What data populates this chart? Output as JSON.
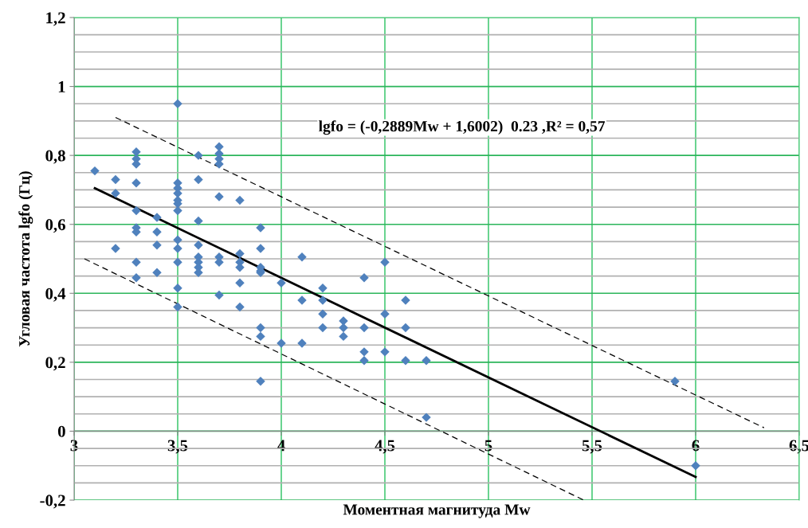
{
  "chart_data": {
    "type": "scatter",
    "xlabel": "Моментная магнитуда Mw",
    "ylabel": "Угловая частота lgfo (Гц)",
    "annotations": [
      "lgfo = (-0,2889Mw + 1,6002)  0.23 ,R² = 0,57"
    ],
    "series": [
      {
        "color": "#4f81bd",
        "marker": "diamond",
        "x": [
          3.1,
          3.2,
          3.2,
          3.2,
          3.3,
          3.3,
          3.3,
          3.3,
          3.3,
          3.3,
          3.3,
          3.3,
          3.3,
          3.4,
          3.4,
          3.4,
          3.4,
          3.5,
          3.5,
          3.5,
          3.5,
          3.5,
          3.5,
          3.5,
          3.5,
          3.5,
          3.5,
          3.5,
          3.5,
          3.6,
          3.6,
          3.6,
          3.6,
          3.6,
          3.6,
          3.6,
          3.6,
          3.7,
          3.7,
          3.7,
          3.7,
          3.7,
          3.7,
          3.7,
          3.7,
          3.8,
          3.8,
          3.8,
          3.8,
          3.8,
          3.8,
          3.9,
          3.9,
          3.9,
          3.9,
          3.9,
          3.9,
          3.9,
          3.9,
          4.0,
          4.0,
          4.1,
          4.1,
          4.1,
          4.2,
          4.2,
          4.2,
          4.2,
          4.3,
          4.3,
          4.3,
          4.4,
          4.4,
          4.4,
          4.4,
          4.5,
          4.5,
          4.5,
          4.6,
          4.6,
          4.6,
          4.7,
          4.7,
          5.9,
          6.0
        ],
        "values": [
          0.755,
          0.73,
          0.69,
          0.53,
          0.81,
          0.79,
          0.775,
          0.72,
          0.64,
          0.59,
          0.578,
          0.49,
          0.445,
          0.62,
          0.578,
          0.54,
          0.46,
          0.95,
          0.72,
          0.705,
          0.69,
          0.67,
          0.66,
          0.64,
          0.555,
          0.53,
          0.49,
          0.415,
          0.36,
          0.8,
          0.73,
          0.61,
          0.54,
          0.505,
          0.49,
          0.475,
          0.46,
          0.825,
          0.805,
          0.79,
          0.775,
          0.68,
          0.505,
          0.49,
          0.395,
          0.67,
          0.515,
          0.49,
          0.475,
          0.43,
          0.36,
          0.59,
          0.53,
          0.475,
          0.465,
          0.46,
          0.3,
          0.275,
          0.145,
          0.43,
          0.255,
          0.505,
          0.38,
          0.255,
          0.415,
          0.38,
          0.34,
          0.3,
          0.32,
          0.3,
          0.275,
          0.445,
          0.3,
          0.23,
          0.205,
          0.49,
          0.34,
          0.23,
          0.38,
          0.3,
          0.205,
          0.205,
          0.04,
          0.145,
          -0.1
        ]
      },
      {
        "type": "line",
        "color": "#000000",
        "line_style": "solid",
        "x": [
          3.1,
          6.0
        ],
        "values": [
          0.705,
          -0.133
        ]
      },
      {
        "type": "line",
        "color": "#000000",
        "line_style": "dashed",
        "x": [
          3.2,
          6.33
        ],
        "values": [
          0.91,
          0.01
        ]
      },
      {
        "type": "line",
        "color": "#000000",
        "line_style": "dashed",
        "x": [
          3.05,
          5.46
        ],
        "values": [
          0.5,
          -0.2
        ]
      }
    ],
    "xlim": [
      3,
      6.5
    ],
    "xticks": [
      3,
      {
        "value": 3.5,
        "label": "3,5"
      },
      4,
      {
        "value": 4.5,
        "label": "4,5"
      },
      5,
      {
        "value": 5.5,
        "label": "5,5"
      },
      6,
      {
        "value": 6.5,
        "label": "6,5"
      }
    ],
    "ylim": [
      -0.2,
      1.2
    ],
    "yticks": [
      {
        "value": -0.2,
        "label": "-0,2"
      },
      0,
      {
        "value": 0.2,
        "label": "0,2"
      },
      {
        "value": 0.4,
        "label": "0,4"
      },
      {
        "value": 0.6,
        "label": "0,6"
      },
      {
        "value": 0.8,
        "label": "0,8"
      },
      1,
      {
        "value": 1.2,
        "label": "1,2"
      }
    ],
    "grid": true
  }
}
